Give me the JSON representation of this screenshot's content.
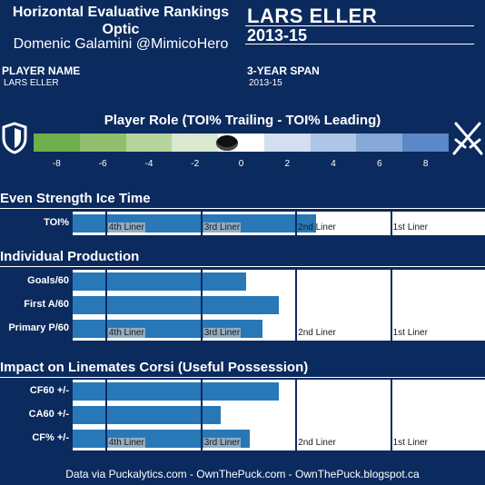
{
  "header": {
    "title_line1": "Horizontal Evaluative Rankings",
    "title_line2": "Optic",
    "author": "Domenic Galamini @MimicoHero",
    "player_name_big": "LARS ELLER",
    "season_big": "2013-15",
    "player_name_label": "PLAYER NAME",
    "player_name_value": "LARS ELLER",
    "span_label": "3-YEAR SPAN",
    "span_value": "2013-15"
  },
  "role": {
    "title": "Player Role (TOI% Trailing - TOI% Leading)",
    "ticks": [
      "-8",
      "-6",
      "-4",
      "-2",
      "0",
      "2",
      "4",
      "6",
      "8"
    ],
    "marker_value": -0.6,
    "colors": [
      "#6fae4a",
      "#8fbf6d",
      "#b4d49c",
      "#d9e8cf",
      "#ffffff",
      "#d3def0",
      "#aec5e5",
      "#86a9d8",
      "#5b88c6"
    ],
    "left_icon": "shield-icon",
    "right_icon": "crossed-swords-icon"
  },
  "sections": {
    "even_strength": "Even Strength Ice Time",
    "production": "Individual Production",
    "impact": "Impact on Linemates Corsi (Useful Possession)"
  },
  "tier_labels": [
    "4th Liner",
    "3rd Liner",
    "2nd Liner",
    "1st Liner"
  ],
  "rows": {
    "toi": {
      "label": "TOI%",
      "value_fraction": 0.59
    },
    "goals": {
      "label": "Goals/60",
      "value_fraction": 0.42
    },
    "firsta": {
      "label": "First A/60",
      "value_fraction": 0.5
    },
    "primaryp": {
      "label": "Primary P/60",
      "value_fraction": 0.46
    },
    "cf60": {
      "label": "CF60 +/-",
      "value_fraction": 0.5
    },
    "ca60": {
      "label": "CA60 +/-",
      "value_fraction": 0.36
    },
    "cfpct": {
      "label": "CF% +/-",
      "value_fraction": 0.43
    }
  },
  "footer": "Data via Puckalytics.com - OwnThePuck.com - OwnThePuck.blogspot.ca"
}
